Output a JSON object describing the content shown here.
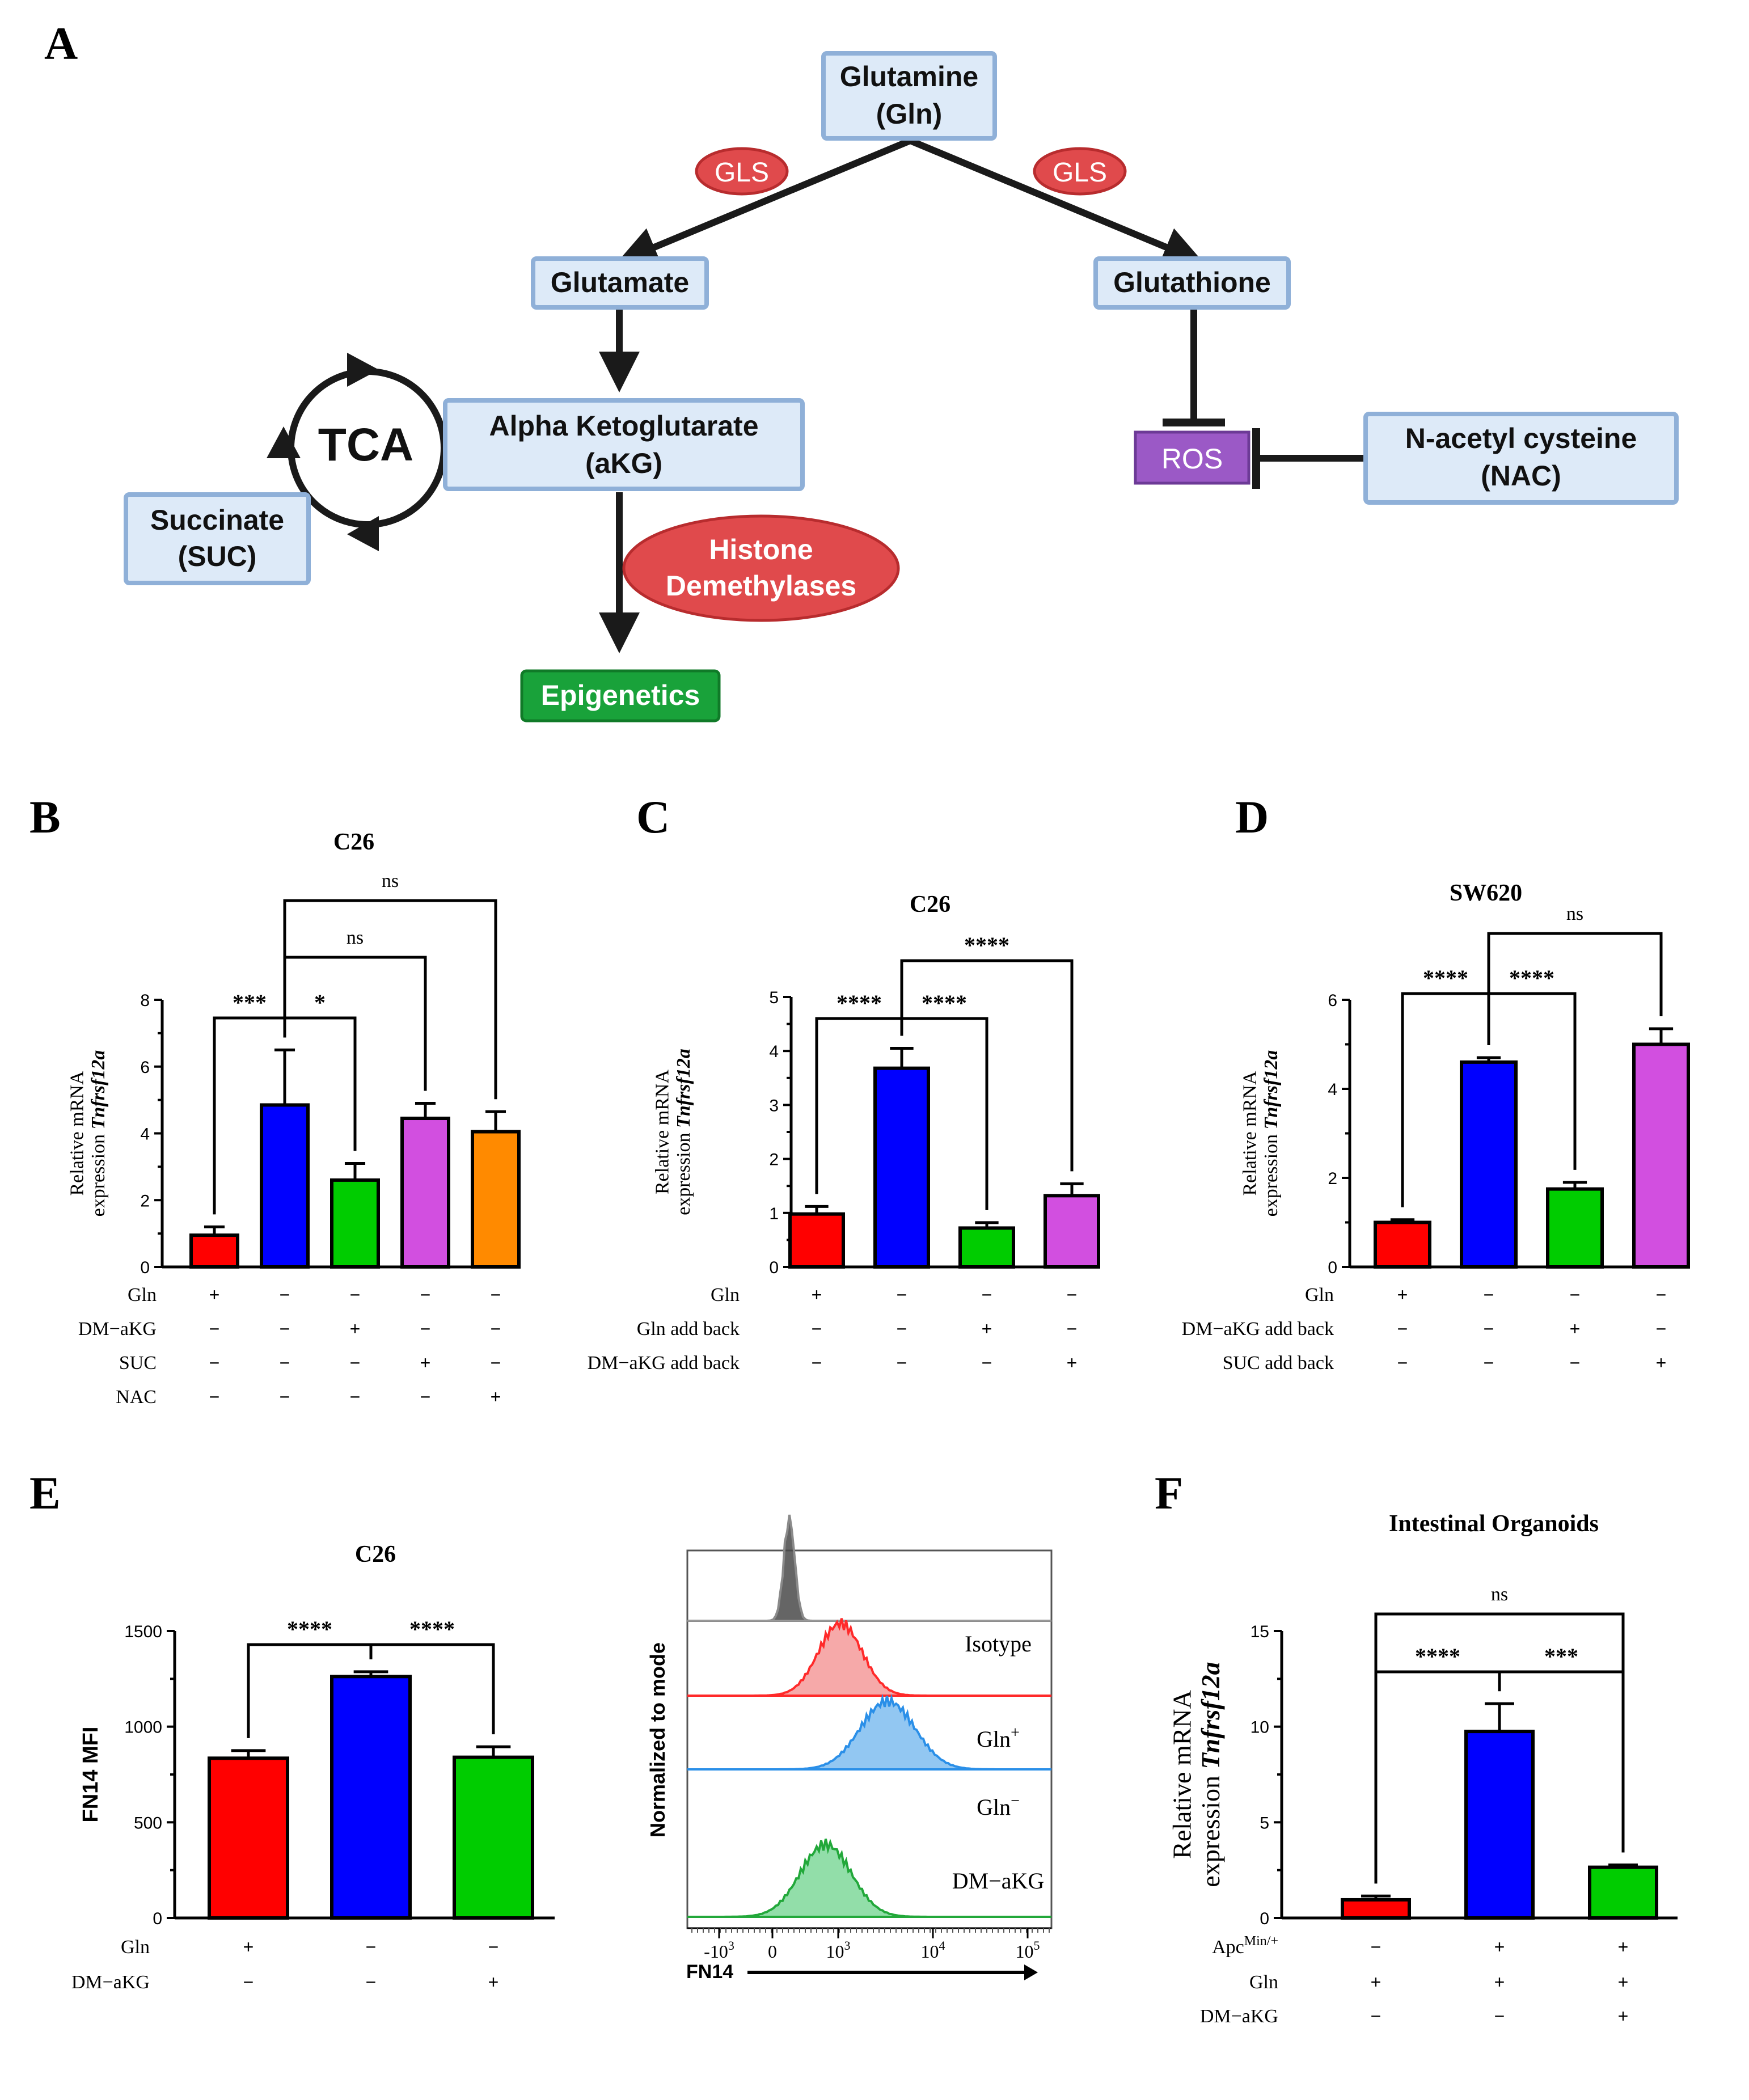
{
  "panels": {
    "A": "A",
    "B": "B",
    "C": "C",
    "D": "D",
    "E": "E",
    "F": "F"
  },
  "pathway": {
    "glutamine": [
      "Glutamine",
      "(Gln)"
    ],
    "gls_left": "GLS",
    "gls_right": "GLS",
    "glutamate": "Glutamate",
    "glutathione": "Glutathione",
    "tca": "TCA",
    "akg": [
      "Alpha Ketoglutarate",
      "(aKG)"
    ],
    "succinate": [
      "Succinate",
      "(SUC)"
    ],
    "ros": "ROS",
    "nac": [
      "N-acetyl cysteine",
      "(NAC)"
    ],
    "histone": [
      "Histone",
      "Demethylases"
    ],
    "epigenetics": "Epigenetics"
  },
  "colors": {
    "red": "#ff0000",
    "blue": "#0000ff",
    "green": "#00cc00",
    "magenta": "#d24fe0",
    "orange": "#ff8a00",
    "gls_fill": "#e04a4c",
    "ros_fill": "#9b59c6",
    "epi_fill": "#19a23a"
  },
  "chart_data": [
    {
      "id": "B",
      "type": "bar",
      "title": "C26",
      "ylabel": [
        "Relative mRNA",
        "expression ",
        "Tnfrsf12a"
      ],
      "ylim": [
        0,
        8
      ],
      "yticks": [
        0,
        2,
        4,
        6,
        8
      ],
      "values": [
        0.95,
        4.85,
        2.6,
        4.45,
        4.05
      ],
      "errors": [
        0.25,
        1.65,
        0.5,
        0.45,
        0.6
      ],
      "colors": [
        "red",
        "blue",
        "green",
        "magenta",
        "orange"
      ],
      "comparisons": [
        {
          "from": 0,
          "to": 1,
          "label": "***"
        },
        {
          "from": 1,
          "to": 2,
          "label": "*"
        },
        {
          "from": 1,
          "to": 3,
          "label": "ns"
        },
        {
          "from": 1,
          "to": 4,
          "label": "ns"
        }
      ],
      "conditions": [
        {
          "label": "Gln",
          "marks": [
            "+",
            "−",
            "−",
            "−",
            "−"
          ]
        },
        {
          "label": "DM−aKG",
          "marks": [
            "−",
            "−",
            "+",
            "−",
            "−"
          ]
        },
        {
          "label": "SUC",
          "marks": [
            "−",
            "−",
            "−",
            "+",
            "−"
          ]
        },
        {
          "label": "NAC",
          "marks": [
            "−",
            "−",
            "−",
            "−",
            "+"
          ]
        }
      ]
    },
    {
      "id": "C",
      "type": "bar",
      "title": "C26",
      "ylabel": [
        "Relative mRNA",
        "expression ",
        "Tnfrsf12a"
      ],
      "ylim": [
        0,
        5
      ],
      "yticks": [
        0,
        1,
        2,
        3,
        4,
        5
      ],
      "values": [
        0.98,
        3.68,
        0.72,
        1.32
      ],
      "errors": [
        0.14,
        0.37,
        0.1,
        0.22
      ],
      "colors": [
        "red",
        "blue",
        "green",
        "magenta"
      ],
      "comparisons": [
        {
          "from": 0,
          "to": 1,
          "label": "****"
        },
        {
          "from": 1,
          "to": 2,
          "label": "****"
        },
        {
          "from": 1,
          "to": 3,
          "label": "****"
        }
      ],
      "conditions": [
        {
          "label": "Gln",
          "marks": [
            "+",
            "−",
            "−",
            "−"
          ]
        },
        {
          "label": "Gln add back",
          "marks": [
            "−",
            "−",
            "+",
            "−"
          ]
        },
        {
          "label": "DM−aKG add back",
          "marks": [
            "−",
            "−",
            "−",
            "+"
          ]
        }
      ]
    },
    {
      "id": "D",
      "type": "bar",
      "title": "SW620",
      "ylabel": [
        "Relative mRNA",
        "expression ",
        "Tnfrsf12a"
      ],
      "ylim": [
        0,
        6
      ],
      "yticks": [
        0,
        2,
        4,
        6
      ],
      "values": [
        1.0,
        4.6,
        1.75,
        5.0
      ],
      "errors": [
        0.06,
        0.1,
        0.15,
        0.35
      ],
      "colors": [
        "red",
        "blue",
        "green",
        "magenta"
      ],
      "comparisons": [
        {
          "from": 0,
          "to": 1,
          "label": "****"
        },
        {
          "from": 1,
          "to": 2,
          "label": "****"
        },
        {
          "from": 1,
          "to": 3,
          "label": "ns"
        }
      ],
      "conditions": [
        {
          "label": "Gln",
          "marks": [
            "+",
            "−",
            "−",
            "−"
          ]
        },
        {
          "label": "DM−aKG add back",
          "marks": [
            "−",
            "−",
            "+",
            "−"
          ]
        },
        {
          "label": "SUC add back",
          "marks": [
            "−",
            "−",
            "−",
            "+"
          ]
        }
      ]
    },
    {
      "id": "E",
      "type": "bar",
      "title": "C26",
      "ylabel": [
        "FN14 MFI"
      ],
      "ylim": [
        0,
        1500
      ],
      "yticks": [
        0,
        500,
        1000,
        1500
      ],
      "values": [
        835,
        1262,
        840
      ],
      "errors": [
        40,
        25,
        55
      ],
      "colors": [
        "red",
        "blue",
        "green"
      ],
      "comparisons": [
        {
          "from": 0,
          "to": 1,
          "label": "****"
        },
        {
          "from": 1,
          "to": 2,
          "label": "****"
        }
      ],
      "conditions": [
        {
          "label": "Gln",
          "marks": [
            "+",
            "−",
            "−"
          ]
        },
        {
          "label": "DM−aKG",
          "marks": [
            "−",
            "−",
            "+"
          ]
        }
      ]
    },
    {
      "id": "E-flow",
      "type": "area",
      "ylabel": "Normalized to mode",
      "xlabel": "FN14",
      "xticks": [
        "-10",
        "0",
        "10",
        "10",
        "10"
      ],
      "xtick_exponents": [
        "3",
        "",
        "3",
        "4",
        "5"
      ],
      "tracks": [
        {
          "label": "Isotype",
          "sup": "",
          "color": "#8a8a8a",
          "fill": "#4a4a4a",
          "center": 0.28,
          "width": 0.015,
          "height": 0.9
        },
        {
          "label": "Gln",
          "sup": "+",
          "color": "#ff2a2a",
          "fill": "#f59a9a",
          "center": 0.42,
          "width": 0.06,
          "height": 0.85
        },
        {
          "label": "Gln",
          "sup": "−",
          "color": "#2a8fe8",
          "fill": "#7fbdf0",
          "center": 0.55,
          "width": 0.075,
          "height": 0.8
        },
        {
          "label": "DM−aKG",
          "sup": "",
          "color": "#22a83a",
          "fill": "#7fd89a",
          "center": 0.38,
          "width": 0.07,
          "height": 0.85
        }
      ]
    },
    {
      "id": "F",
      "type": "bar",
      "title": "Intestinal Organoids",
      "ylabel": [
        "Relative mRNA",
        "expression ",
        "Tnfrsf12a"
      ],
      "ylim": [
        0,
        15
      ],
      "yticks": [
        0,
        5,
        10,
        15
      ],
      "values": [
        0.95,
        9.75,
        2.65
      ],
      "errors": [
        0.2,
        1.45,
        0.12
      ],
      "colors": [
        "red",
        "blue",
        "green"
      ],
      "comparisons": [
        {
          "from": 0,
          "to": 1,
          "label": "****"
        },
        {
          "from": 1,
          "to": 2,
          "label": "***"
        },
        {
          "from": 0,
          "to": 2,
          "label": "ns"
        }
      ],
      "conditions": [
        {
          "label": "Apc",
          "sup": "Min/+",
          "marks": [
            "−",
            "+",
            "+"
          ]
        },
        {
          "label": "Gln",
          "marks": [
            "+",
            "+",
            "+"
          ]
        },
        {
          "label": "DM−aKG",
          "marks": [
            "−",
            "−",
            "+"
          ]
        }
      ]
    }
  ]
}
